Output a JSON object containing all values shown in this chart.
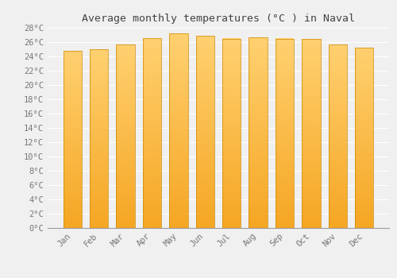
{
  "title": "Average monthly temperatures (°C ) in Naval",
  "months": [
    "Jan",
    "Feb",
    "Mar",
    "Apr",
    "May",
    "Jun",
    "Jul",
    "Aug",
    "Sep",
    "Oct",
    "Nov",
    "Dec"
  ],
  "temperatures": [
    24.8,
    25.0,
    25.7,
    26.6,
    27.2,
    26.9,
    26.5,
    26.7,
    26.5,
    26.4,
    25.7,
    25.2
  ],
  "bar_color_bottom": "#F5A623",
  "bar_color_top": "#FFD070",
  "ylim": [
    0,
    28
  ],
  "ytick_step": 2,
  "background_color": "#f0f0f0",
  "plot_bg_color": "#f0f0f0",
  "grid_color": "#ffffff",
  "title_fontsize": 9.5,
  "tick_fontsize": 7.5,
  "bar_edge_color": "#CC8800",
  "bar_width": 0.7
}
